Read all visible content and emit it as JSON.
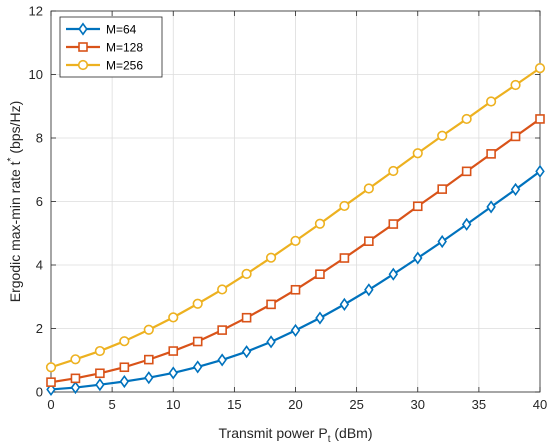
{
  "chart_data": {
    "type": "line",
    "x": [
      0,
      2,
      4,
      6,
      8,
      10,
      12,
      14,
      16,
      18,
      20,
      22,
      24,
      26,
      28,
      30,
      32,
      34,
      36,
      38,
      40
    ],
    "series": [
      {
        "name": "M=64",
        "color": "#0072BD",
        "marker": "diamond",
        "values": [
          0.08,
          0.14,
          0.23,
          0.33,
          0.45,
          0.6,
          0.79,
          1.01,
          1.27,
          1.58,
          1.94,
          2.33,
          2.76,
          3.22,
          3.71,
          4.22,
          4.74,
          5.28,
          5.83,
          6.38,
          6.95
        ]
      },
      {
        "name": "M=128",
        "color": "#D95319",
        "marker": "square",
        "values": [
          0.31,
          0.43,
          0.59,
          0.78,
          1.02,
          1.29,
          1.59,
          1.95,
          2.34,
          2.76,
          3.22,
          3.71,
          4.22,
          4.75,
          5.29,
          5.85,
          6.39,
          6.95,
          7.5,
          8.05,
          8.6
        ]
      },
      {
        "name": "M=256",
        "color": "#EDB120",
        "marker": "circle",
        "values": [
          0.78,
          1.03,
          1.29,
          1.6,
          1.96,
          2.35,
          2.78,
          3.23,
          3.72,
          4.23,
          4.76,
          5.3,
          5.86,
          6.41,
          6.96,
          7.52,
          8.07,
          8.6,
          9.15,
          9.67,
          10.2
        ]
      }
    ],
    "xlabel": "Transmit power P",
    "xlabel_sub": "t",
    "xlabel_unit": " (dBm)",
    "ylabel": "Ergodic max-min rate t",
    "ylabel_sup": "*",
    "ylabel_unit": " (bps/Hz)",
    "xlim": [
      0,
      40
    ],
    "ylim": [
      0,
      12
    ],
    "xticks": [
      0,
      5,
      10,
      15,
      20,
      25,
      30,
      35,
      40
    ],
    "yticks": [
      0,
      2,
      4,
      6,
      8,
      10,
      12
    ],
    "grid": true,
    "legend_position": "top-left"
  }
}
